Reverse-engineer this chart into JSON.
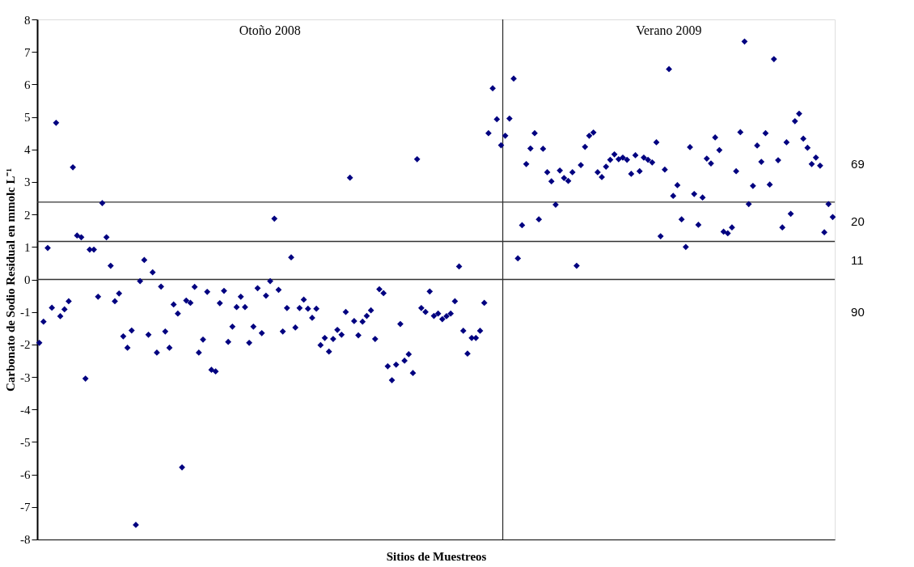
{
  "chart_data": {
    "type": "scatter",
    "xlabel": "Sitios de Muestreos",
    "ylabel": "Carbonato de Sodio Residual  en mmolc L⁻¹",
    "categories": [
      null,
      null,
      null,
      null,
      null,
      null,
      null,
      null,
      null,
      null,
      null,
      null,
      null,
      null,
      null,
      null,
      null,
      null,
      null,
      null,
      null,
      null,
      null,
      null,
      null,
      null,
      null,
      null,
      null,
      null,
      null,
      null,
      null,
      null,
      null,
      null,
      null,
      null,
      null,
      null,
      null,
      null,
      null,
      null,
      null,
      null,
      null,
      null,
      null,
      null,
      null,
      null,
      null,
      null,
      null,
      null,
      null,
      null,
      null,
      null,
      null,
      null,
      null,
      null,
      null,
      null,
      null,
      null,
      null,
      null,
      null,
      null,
      null,
      null,
      null,
      null,
      null,
      null,
      null,
      null,
      null,
      null,
      null,
      null,
      null,
      null,
      null,
      null,
      null,
      null,
      null,
      null,
      null,
      null,
      null,
      null,
      null,
      null,
      null,
      null,
      null,
      null,
      null,
      null,
      null,
      null,
      null,
      null,
      null,
      null,
      null,
      null,
      null,
      null,
      null,
      null,
      null,
      null,
      null,
      null,
      null,
      null,
      null,
      null,
      null,
      null,
      null,
      null,
      null,
      null,
      null,
      null,
      null,
      null,
      null,
      null,
      null,
      null,
      null,
      null,
      null,
      null,
      null,
      null,
      null,
      null,
      null,
      null,
      null,
      null,
      null,
      null,
      null,
      null,
      null,
      null,
      null,
      null,
      null,
      null,
      null,
      null,
      null,
      null,
      null,
      null,
      null,
      null,
      null,
      null,
      null,
      null,
      null,
      null,
      null,
      null,
      null,
      null,
      null,
      null,
      null,
      null,
      null,
      null,
      null,
      null,
      null,
      null,
      null,
      null
    ],
    "series": [
      {
        "color": "#000080",
        "values": [
          -1.95,
          -1.3,
          0.97,
          -0.87,
          4.82,
          -1.13,
          -0.92,
          -0.67,
          3.45,
          1.35,
          1.3,
          -3.05,
          0.92,
          0.92,
          -0.53,
          2.35,
          1.3,
          0.42,
          -0.67,
          -0.43,
          -1.75,
          -2.1,
          -1.57,
          -7.55,
          -0.05,
          0.6,
          -1.7,
          0.22,
          -2.25,
          -0.22,
          -1.6,
          -2.1,
          -0.77,
          -1.05,
          -5.78,
          -0.65,
          -0.72,
          -0.23,
          -2.25,
          -1.85,
          -0.38,
          -2.78,
          -2.83,
          -0.73,
          -0.35,
          -1.92,
          -1.45,
          -0.85,
          -0.53,
          -0.85,
          -1.95,
          -1.45,
          -0.27,
          -1.65,
          -0.5,
          -0.05,
          1.87,
          -0.32,
          -1.6,
          -0.88,
          0.68,
          -1.48,
          -0.88,
          -0.62,
          -0.9,
          -1.18,
          -0.9,
          -2.02,
          -1.8,
          -2.22,
          -1.83,
          -1.55,
          -1.7,
          -1.0,
          3.13,
          -1.28,
          -1.72,
          -1.3,
          -1.12,
          -0.95,
          -1.83,
          -0.3,
          -0.42,
          -2.67,
          -3.1,
          -2.62,
          -1.37,
          -2.5,
          -2.3,
          -2.88,
          3.7,
          -0.88,
          -1.0,
          -0.37,
          -1.12,
          -1.05,
          -1.22,
          -1.13,
          -1.05,
          -0.67,
          0.4,
          -1.58,
          -2.28,
          -1.8,
          -1.8,
          -1.58,
          -0.72,
          4.5,
          5.88,
          4.93,
          4.13,
          4.42,
          4.95,
          6.18,
          0.65,
          1.67,
          3.55,
          4.03,
          4.5,
          1.85,
          4.02,
          3.3,
          3.02,
          2.3,
          3.35,
          3.12,
          3.03,
          3.3,
          0.42,
          3.52,
          4.08,
          4.42,
          4.52,
          3.3,
          3.15,
          3.47,
          3.68,
          3.85,
          3.7,
          3.75,
          3.68,
          3.25,
          3.82,
          3.33,
          3.75,
          3.68,
          3.6,
          4.22,
          1.33,
          3.38,
          6.47,
          2.57,
          2.9,
          1.85,
          1.0,
          4.07,
          2.63,
          1.68,
          2.52,
          3.72,
          3.57,
          4.37,
          3.98,
          1.47,
          1.42,
          1.6,
          3.33,
          4.53,
          7.32,
          2.32,
          2.88,
          4.12,
          3.62,
          4.5,
          2.92,
          6.78,
          3.67,
          1.6,
          4.22,
          2.02,
          4.87,
          5.1,
          4.33,
          4.05,
          3.55,
          3.75,
          3.5,
          1.45,
          2.32,
          1.92
        ]
      }
    ],
    "ylim": [
      -8,
      8
    ],
    "yticks": [
      -8,
      -7,
      -6,
      -5,
      -4,
      -3,
      -2,
      -1,
      0,
      1,
      2,
      3,
      4,
      5,
      6,
      7,
      8
    ],
    "tick_labels": "y",
    "marker": "diamond",
    "ref_lines": [
      {
        "axis": "y",
        "value": 2.38
      },
      {
        "axis": "y",
        "value": 1.17
      },
      {
        "axis": "y",
        "value": 0
      }
    ],
    "annotations": [
      "Otoño 2008",
      "Verano 2009",
      "69",
      "20",
      "11",
      "90"
    ]
  }
}
